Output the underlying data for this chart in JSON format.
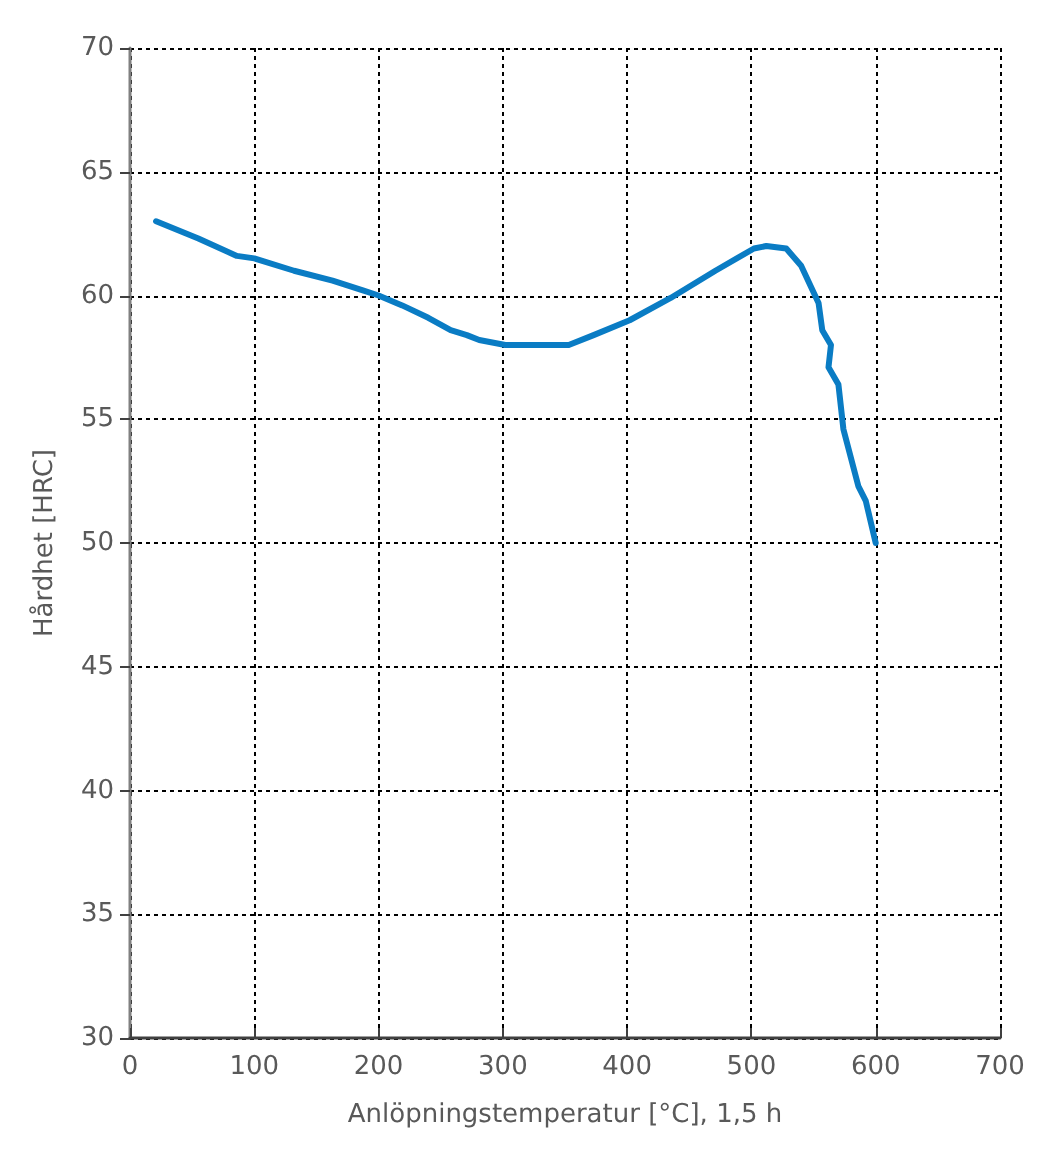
{
  "chart_data": {
    "type": "line",
    "xlabel": "Anlöpningstemperatur [°C], 1,5 h",
    "ylabel": "Hårdhet [HRC]",
    "x": [
      21,
      55,
      86,
      100,
      132,
      163,
      188,
      200,
      219,
      240,
      258,
      271,
      281,
      302,
      332,
      353,
      373,
      402,
      435,
      471,
      502,
      512,
      528,
      540,
      554,
      557,
      564,
      562,
      570,
      574,
      586,
      592,
      600
    ],
    "series": [
      {
        "color": "#0a7cc4",
        "values": [
          63.0,
          62.3,
          61.6,
          61.5,
          61.0,
          60.6,
          60.2,
          60.0,
          59.6,
          59.1,
          58.6,
          58.4,
          58.2,
          58.0,
          58.0,
          58.0,
          58.4,
          59.0,
          59.9,
          61.0,
          61.9,
          62.0,
          61.9,
          61.2,
          59.7,
          58.6,
          58.0,
          57.1,
          56.4,
          54.6,
          52.3,
          51.7,
          50.0
        ]
      }
    ],
    "xlim": [
      0,
      700
    ],
    "xticks": [
      0,
      100,
      200,
      300,
      400,
      500,
      600,
      700
    ],
    "ylim": [
      30,
      70
    ],
    "yticks": [
      30,
      35,
      40,
      45,
      50,
      55,
      60,
      65,
      70
    ],
    "grid": true,
    "marker": "none",
    "line_style": "solid"
  }
}
